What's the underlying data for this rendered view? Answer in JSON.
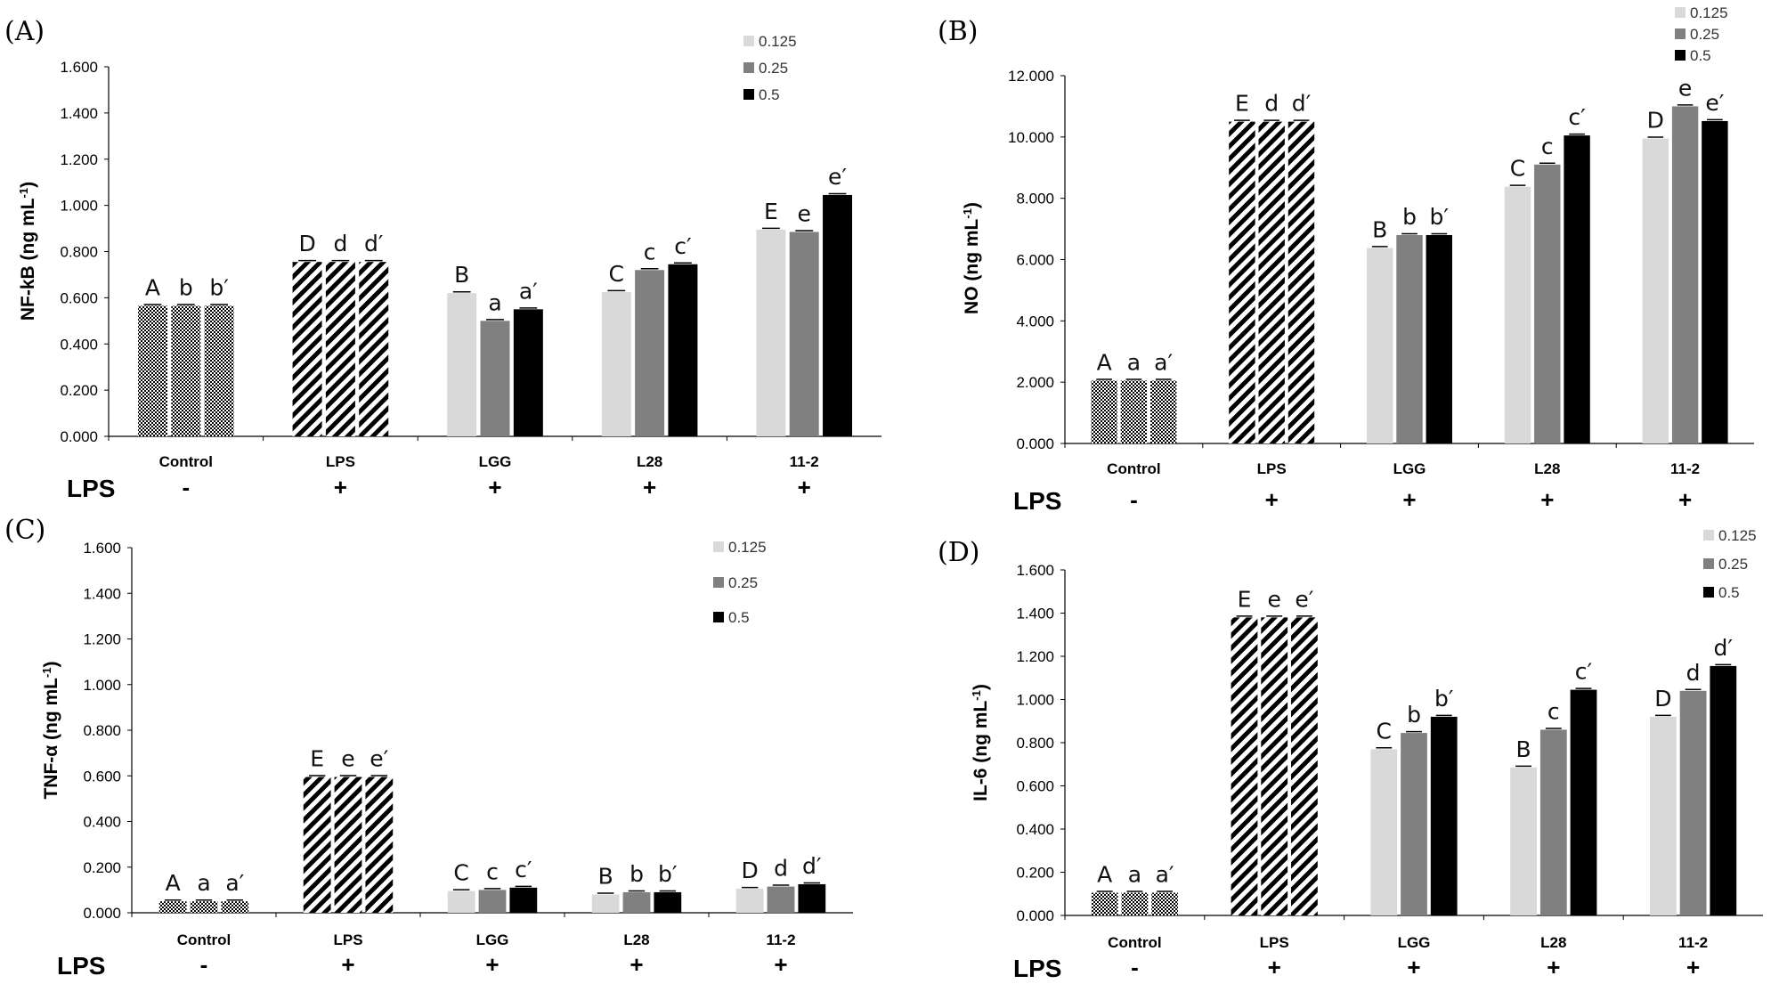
{
  "colors": {
    "conc_0_125": "#d9d9d9",
    "conc_0_25": "#808080",
    "conc_0_5": "#000000",
    "axis": "#000000"
  },
  "lps_row": {
    "title": "LPS",
    "signs": [
      "-",
      "+",
      "+",
      "+",
      "+"
    ]
  },
  "chart_data": [
    {
      "panel": "(A)",
      "type": "bar",
      "ylabel": "NF-kB (ng mL-1)",
      "ylim": [
        0,
        1.6
      ],
      "yticks": [
        "0.000",
        "0.200",
        "0.400",
        "0.600",
        "0.800",
        "1.000",
        "1.200",
        "1.400",
        "1.600"
      ],
      "categories": [
        "Control",
        "LPS",
        "LGG",
        "L28",
        "11-2"
      ],
      "legend": [
        "0.125",
        "0.25",
        "0.5"
      ],
      "values": [
        [
          0.565,
          0.565,
          0.565
        ],
        [
          0.755,
          0.755,
          0.755
        ],
        [
          0.62,
          0.5,
          0.55
        ],
        [
          0.625,
          0.72,
          0.745
        ],
        [
          0.895,
          0.885,
          1.045
        ]
      ],
      "labels": [
        [
          "A",
          "b",
          "b′"
        ],
        [
          "D",
          "d",
          "d′"
        ],
        [
          "B",
          "a",
          "a′"
        ],
        [
          "C",
          "c",
          "c′"
        ],
        [
          "E",
          "e",
          "e′"
        ]
      ]
    },
    {
      "panel": "(B)",
      "type": "bar",
      "ylabel": "NO (ng mL-1)",
      "ylim": [
        0,
        12
      ],
      "yticks": [
        "0.000",
        "2.000",
        "4.000",
        "6.000",
        "8.000",
        "10.000",
        "12.000"
      ],
      "categories": [
        "Control",
        "LPS",
        "LGG",
        "L28",
        "11-2"
      ],
      "legend": [
        "0.125",
        "0.25",
        "0.5"
      ],
      "values": [
        [
          2.05,
          2.05,
          2.05
        ],
        [
          10.5,
          10.5,
          10.5
        ],
        [
          6.38,
          6.8,
          6.8
        ],
        [
          8.38,
          9.1,
          10.05
        ],
        [
          9.95,
          11.0,
          10.52
        ]
      ],
      "labels": [
        [
          "A",
          "a",
          "a′"
        ],
        [
          "E",
          "d",
          "d′"
        ],
        [
          "B",
          "b",
          "b′"
        ],
        [
          "C",
          "c",
          "c′"
        ],
        [
          "D",
          "e",
          "e′"
        ]
      ]
    },
    {
      "panel": "(C)",
      "type": "bar",
      "ylabel": "TNF-α (ng mL-1)",
      "ylim": [
        0,
        1.6
      ],
      "yticks": [
        "0.000",
        "0.200",
        "0.400",
        "0.600",
        "0.800",
        "1.000",
        "1.200",
        "1.400",
        "1.600"
      ],
      "categories": [
        "Control",
        "LPS",
        "LGG",
        "L28",
        "11-2"
      ],
      "legend": [
        "0.125",
        "0.25",
        "0.5"
      ],
      "values": [
        [
          0.05,
          0.05,
          0.05
        ],
        [
          0.595,
          0.595,
          0.595
        ],
        [
          0.095,
          0.1,
          0.11
        ],
        [
          0.08,
          0.09,
          0.09
        ],
        [
          0.105,
          0.115,
          0.125
        ]
      ],
      "labels": [
        [
          "A",
          "a",
          "a′"
        ],
        [
          "E",
          "e",
          "e′"
        ],
        [
          "C",
          "c",
          "c′"
        ],
        [
          "B",
          "b",
          "b′"
        ],
        [
          "D",
          "d",
          "d′"
        ]
      ]
    },
    {
      "panel": "(D)",
      "type": "bar",
      "ylabel": "IL-6 (ng mL-1)",
      "ylim": [
        0,
        1.6
      ],
      "yticks": [
        "0.000",
        "0.200",
        "0.400",
        "0.600",
        "0.800",
        "1.000",
        "1.200",
        "1.400",
        "1.600"
      ],
      "categories": [
        "Control",
        "LPS",
        "LGG",
        "L28",
        "11-2"
      ],
      "legend": [
        "0.125",
        "0.25",
        "0.5"
      ],
      "values": [
        [
          0.105,
          0.105,
          0.105
        ],
        [
          1.38,
          1.38,
          1.38
        ],
        [
          0.77,
          0.845,
          0.92
        ],
        [
          0.685,
          0.86,
          1.045
        ],
        [
          0.92,
          1.04,
          1.155
        ]
      ],
      "labels": [
        [
          "A",
          "a",
          "a′"
        ],
        [
          "E",
          "e",
          "e′"
        ],
        [
          "C",
          "b",
          "b′"
        ],
        [
          "B",
          "c",
          "c′"
        ],
        [
          "D",
          "d",
          "d′"
        ]
      ]
    }
  ]
}
